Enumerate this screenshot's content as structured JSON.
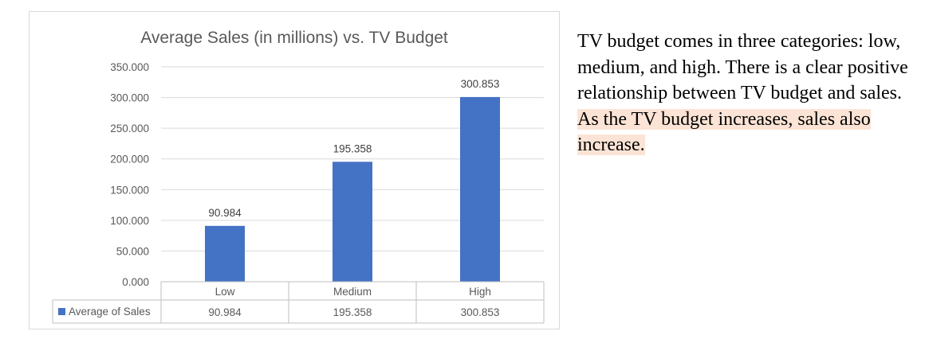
{
  "chart_data": {
    "type": "bar",
    "title": "Average Sales (in millions) vs. TV Budget",
    "categories": [
      "Low",
      "Medium",
      "High"
    ],
    "series": [
      {
        "name": "Average of Sales",
        "values": [
          90.984,
          195.358,
          300.853
        ],
        "labels": [
          "90.984",
          "195.358",
          "300.853"
        ]
      }
    ],
    "ylim": [
      0,
      350
    ],
    "yticks": [
      0,
      50,
      100,
      150,
      200,
      250,
      300,
      350
    ],
    "ytick_labels": [
      "0.000",
      "50.000",
      "100.000",
      "150.000",
      "200.000",
      "250.000",
      "300.000",
      "350.000"
    ],
    "grid": true,
    "legend": "data-table",
    "data_table": true,
    "color": "#4472c4"
  },
  "paragraph": {
    "plain": "TV budget comes in three categories: low, medium, and high. There is a clear positive relationship between TV budget and sales. ",
    "highlighted": "As the TV budget increases, sales also increase.",
    "highlight_color": "#fbe4d5"
  }
}
